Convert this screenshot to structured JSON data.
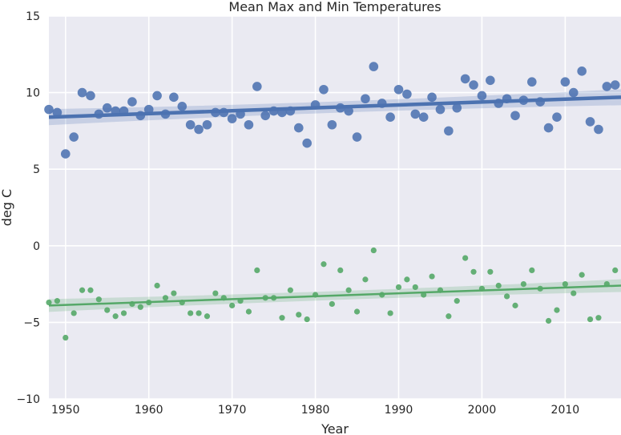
{
  "chart_data": {
    "type": "scatter",
    "title": "Mean Max and Min Temperatures",
    "xlabel": "Year",
    "ylabel": "deg C",
    "xlim": [
      1948,
      2016.7
    ],
    "ylim": [
      -10,
      15
    ],
    "xticks": [
      1950,
      1960,
      1970,
      1980,
      1990,
      2000,
      2010
    ],
    "yticks": [
      -10,
      -5,
      0,
      5,
      10,
      15
    ],
    "grid": true,
    "background": "#eaeaf2",
    "series": [
      {
        "color": "#4c72b0",
        "marker_size": "large",
        "x": [
          1948,
          1949,
          1950,
          1951,
          1952,
          1953,
          1954,
          1955,
          1956,
          1957,
          1958,
          1959,
          1960,
          1961,
          1962,
          1963,
          1964,
          1965,
          1966,
          1967,
          1968,
          1969,
          1970,
          1971,
          1972,
          1973,
          1974,
          1975,
          1976,
          1977,
          1978,
          1979,
          1980,
          1981,
          1982,
          1983,
          1984,
          1985,
          1986,
          1987,
          1988,
          1989,
          1990,
          1991,
          1992,
          1993,
          1994,
          1995,
          1996,
          1997,
          1998,
          1999,
          2000,
          2001,
          2002,
          2003,
          2004,
          2005,
          2006,
          2007,
          2008,
          2009,
          2010,
          2011,
          2012,
          2013,
          2014,
          2015,
          2016
        ],
        "y": [
          8.9,
          8.7,
          6.0,
          7.1,
          10.0,
          9.8,
          8.6,
          9.0,
          8.8,
          8.8,
          9.4,
          8.5,
          8.9,
          9.8,
          8.6,
          9.7,
          9.1,
          7.9,
          7.6,
          7.9,
          8.7,
          8.7,
          8.3,
          8.6,
          7.9,
          10.4,
          8.5,
          8.8,
          8.7,
          8.8,
          7.7,
          6.7,
          9.2,
          10.2,
          7.9,
          9.0,
          8.8,
          7.1,
          9.6,
          11.7,
          9.3,
          8.4,
          10.2,
          9.9,
          8.6,
          8.4,
          9.7,
          8.9,
          7.5,
          9.0,
          10.9,
          10.5,
          9.8,
          10.8,
          9.3,
          9.6,
          8.5,
          9.5,
          10.7,
          9.4,
          7.7,
          8.4,
          10.7,
          10.0,
          11.4,
          8.1,
          7.6,
          10.4,
          10.5
        ],
        "trend": {
          "x": [
            1948,
            2016.7
          ],
          "y": [
            8.4,
            9.7
          ]
        }
      },
      {
        "color": "#55a868",
        "marker_size": "small",
        "x": [
          1948,
          1949,
          1950,
          1951,
          1952,
          1953,
          1954,
          1955,
          1956,
          1957,
          1958,
          1959,
          1960,
          1961,
          1962,
          1963,
          1964,
          1965,
          1966,
          1967,
          1968,
          1969,
          1970,
          1971,
          1972,
          1973,
          1974,
          1975,
          1976,
          1977,
          1978,
          1979,
          1980,
          1981,
          1982,
          1983,
          1984,
          1985,
          1986,
          1987,
          1988,
          1989,
          1990,
          1991,
          1992,
          1993,
          1994,
          1995,
          1996,
          1997,
          1998,
          1999,
          2000,
          2001,
          2002,
          2003,
          2004,
          2005,
          2006,
          2007,
          2008,
          2009,
          2010,
          2011,
          2012,
          2013,
          2014,
          2015,
          2016
        ],
        "y": [
          -3.7,
          -3.6,
          -6.0,
          -4.4,
          -2.9,
          -2.9,
          -3.5,
          -4.2,
          -4.6,
          -4.4,
          -3.8,
          -4.0,
          -3.7,
          -2.6,
          -3.4,
          -3.1,
          -3.7,
          -4.4,
          -4.4,
          -4.6,
          -3.1,
          -3.4,
          -3.9,
          -3.6,
          -4.3,
          -1.6,
          -3.4,
          -3.4,
          -4.7,
          -2.9,
          -4.5,
          -4.8,
          -3.2,
          -1.2,
          -3.8,
          -1.6,
          -2.9,
          -4.3,
          -2.2,
          -0.3,
          -3.2,
          -4.4,
          -2.7,
          -2.2,
          -2.7,
          -3.2,
          -2.0,
          -2.9,
          -4.6,
          -3.6,
          -0.8,
          -1.7,
          -2.8,
          -1.7,
          -2.6,
          -3.3,
          -3.9,
          -2.5,
          -1.6,
          -2.8,
          -4.9,
          -4.2,
          -2.5,
          -3.1,
          -1.9,
          -4.8,
          -4.7,
          -2.5,
          -1.6
        ],
        "trend": {
          "x": [
            1948,
            2016.7
          ],
          "y": [
            -3.9,
            -2.6
          ]
        }
      }
    ]
  }
}
